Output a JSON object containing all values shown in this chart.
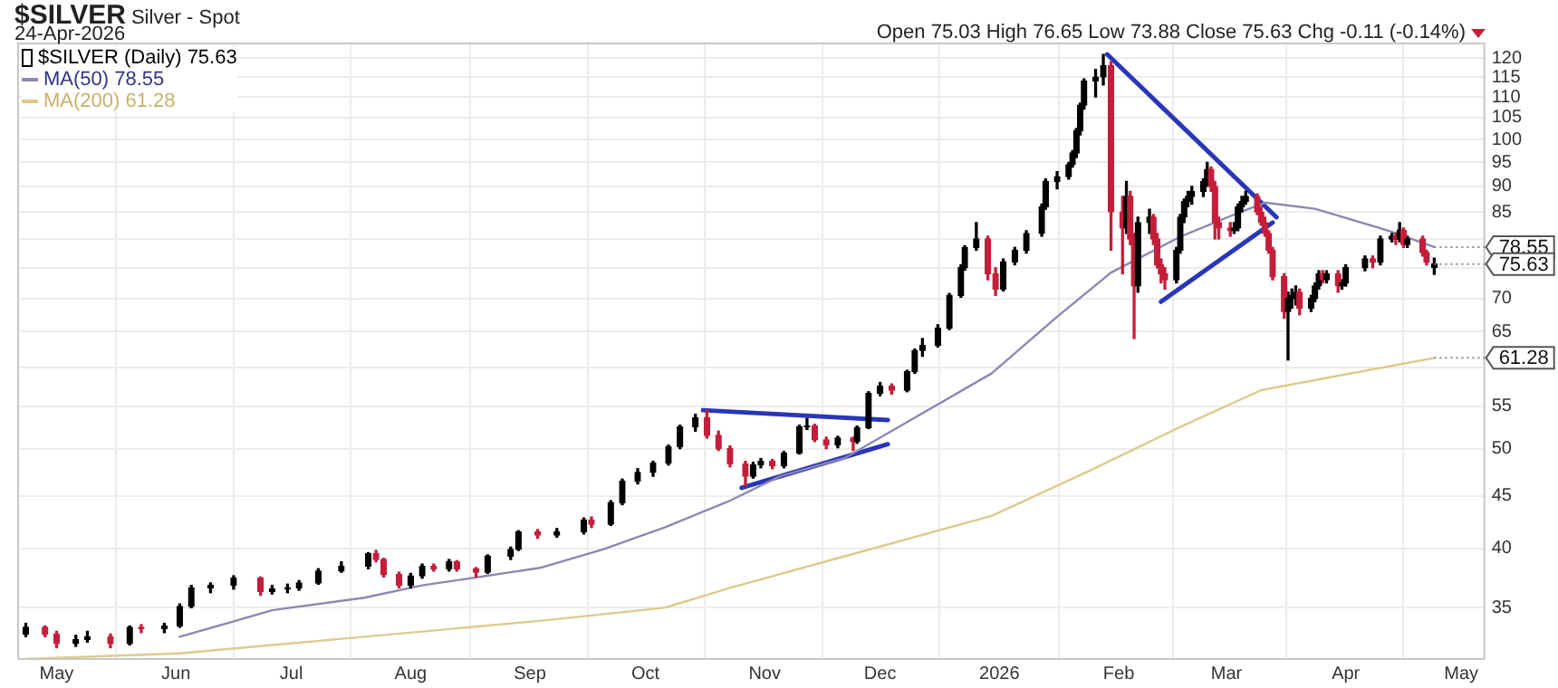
{
  "chart_data": {
    "type": "candlestick",
    "title": "$SILVER",
    "subtitle": "Silver - Spot",
    "annotations": [
      "24-Apr-2026",
      "Open 75.03 High 76.65 Low 73.88 Close 75.63 Chg -0.11 (-0.14%)",
      {
        "text": "78.55",
        "x": "2026-04-24",
        "y": 78.55
      },
      {
        "text": "75.63",
        "x": "2026-04-24",
        "y": 75.63
      },
      {
        "text": "61.28",
        "x": "2026-04-24",
        "y": 61.28
      }
    ],
    "xlim": [
      "2025-04-21",
      "2026-05-07"
    ],
    "xticks": [
      {
        "value": "2025-05-01",
        "label": "May"
      },
      {
        "value": "2025-06-01",
        "label": "Jun"
      },
      {
        "value": "2025-07-01",
        "label": "Jul"
      },
      {
        "value": "2025-08-01",
        "label": "Aug"
      },
      {
        "value": "2025-09-01",
        "label": "Sep"
      },
      {
        "value": "2025-10-01",
        "label": "Oct"
      },
      {
        "value": "2025-11-01",
        "label": "Nov"
      },
      {
        "value": "2025-12-01",
        "label": "Dec"
      },
      {
        "value": "2026-01-01",
        "label": "2026"
      },
      {
        "value": "2026-02-01",
        "label": "Feb"
      },
      {
        "value": "2026-03-01",
        "label": "Mar"
      },
      {
        "value": "2026-04-01",
        "label": "Apr"
      },
      {
        "value": "2026-05-01",
        "label": "May"
      }
    ],
    "ylim": [
      31.2,
      124
    ],
    "yticks": [
      35,
      40,
      45,
      50,
      55,
      {
        "value": 60,
        "label": null
      },
      65,
      70,
      {
        "value": 75,
        "label": null
      },
      {
        "value": 80,
        "label": null
      },
      85,
      90,
      95,
      100,
      105,
      110,
      115,
      120
    ],
    "log": "y",
    "grid": true,
    "legend": "top left",
    "series": [
      {
        "name": "$SILVER (Daily) 75.63",
        "x": [
          "2025-04-23",
          "2025-04-28",
          "2025-05-01",
          "2025-05-06",
          "2025-05-09",
          "2025-05-15",
          "2025-05-20",
          "2025-05-23",
          "2025-05-29",
          "2025-06-02",
          "2025-06-05",
          "2025-06-10",
          "2025-06-16",
          "2025-06-23",
          "2025-06-26",
          "2025-06-30",
          "2025-07-03",
          "2025-07-08",
          "2025-07-14",
          "2025-07-21",
          "2025-07-23",
          "2025-07-25",
          "2025-07-29",
          "2025-08-01",
          "2025-08-04",
          "2025-08-07",
          "2025-08-11",
          "2025-08-13",
          "2025-08-18",
          "2025-08-21",
          "2025-08-27",
          "2025-08-29",
          "2025-09-03",
          "2025-09-08",
          "2025-09-15",
          "2025-09-17",
          "2025-09-22",
          "2025-09-25",
          "2025-09-29",
          "2025-10-03",
          "2025-10-07",
          "2025-10-10",
          "2025-10-14",
          "2025-10-17",
          "2025-10-20",
          "2025-10-23",
          "2025-10-27",
          "2025-10-29",
          "2025-10-31",
          "2025-11-03",
          "2025-11-06",
          "2025-11-10",
          "2025-11-12",
          "2025-11-14",
          "2025-11-17",
          "2025-11-20",
          "2025-11-24",
          "2025-11-25",
          "2025-11-28",
          "2025-12-01",
          "2025-12-04",
          "2025-12-08",
          "2025-12-10",
          "2025-12-12",
          "2025-12-16",
          "2025-12-19",
          "2025-12-22",
          "2025-12-23",
          "2025-12-26",
          "2025-12-29",
          "2025-12-31",
          "2026-01-02",
          "2026-01-05",
          "2026-01-08",
          "2026-01-12",
          "2026-01-13",
          "2026-01-16",
          "2026-01-19",
          "2026-01-20",
          "2026-01-21",
          "2026-01-22",
          "2026-01-23",
          "2026-01-26",
          "2026-01-28",
          "2026-01-30",
          "2026-02-02",
          "2026-02-03",
          "2026-02-04",
          "2026-02-05",
          "2026-02-06",
          "2026-02-09",
          "2026-02-10",
          "2026-02-11",
          "2026-02-12",
          "2026-02-13",
          "2026-02-16",
          "2026-02-17",
          "2026-02-18",
          "2026-02-19",
          "2026-02-20",
          "2026-02-23",
          "2026-02-24",
          "2026-02-25",
          "2026-02-26",
          "2026-02-27",
          "2026-03-02",
          "2026-03-03",
          "2026-03-04",
          "2026-03-05",
          "2026-03-06",
          "2026-03-09",
          "2026-03-10",
          "2026-03-11",
          "2026-03-12",
          "2026-03-13",
          "2026-03-16",
          "2026-03-17",
          "2026-03-18",
          "2026-03-19",
          "2026-03-20",
          "2026-03-23",
          "2026-03-24",
          "2026-03-25",
          "2026-03-26",
          "2026-03-27",
          "2026-03-30",
          "2026-03-31",
          "2026-04-01",
          "2026-04-06",
          "2026-04-08",
          "2026-04-10",
          "2026-04-13",
          "2026-04-14",
          "2026-04-15",
          "2026-04-16",
          "2026-04-17",
          "2026-04-21",
          "2026-04-22",
          "2026-04-24"
        ],
        "ohlc": [
          [
            33.0,
            33.8,
            32.8,
            33.5
          ],
          [
            33.5,
            33.6,
            32.8,
            33.0
          ],
          [
            33.0,
            33.2,
            32.0,
            32.3
          ],
          [
            32.3,
            32.9,
            32.1,
            32.6
          ],
          [
            32.6,
            33.2,
            32.4,
            32.8
          ],
          [
            32.8,
            33.0,
            32.0,
            32.3
          ],
          [
            32.3,
            33.6,
            32.2,
            33.5
          ],
          [
            33.5,
            33.7,
            33.1,
            33.4
          ],
          [
            33.4,
            33.8,
            33.1,
            33.6
          ],
          [
            33.6,
            35.3,
            33.5,
            35.1
          ],
          [
            35.1,
            36.8,
            35.0,
            36.6
          ],
          [
            36.6,
            37.0,
            36.2,
            36.8
          ],
          [
            36.8,
            37.6,
            36.5,
            37.4
          ],
          [
            37.4,
            37.5,
            36.0,
            36.3
          ],
          [
            36.3,
            36.8,
            36.1,
            36.5
          ],
          [
            36.5,
            36.9,
            36.2,
            36.6
          ],
          [
            36.6,
            37.2,
            36.4,
            37.0
          ],
          [
            37.0,
            38.2,
            36.9,
            38.0
          ],
          [
            38.0,
            38.8,
            37.9,
            38.4
          ],
          [
            38.4,
            39.6,
            38.2,
            39.5
          ],
          [
            39.5,
            39.8,
            38.8,
            39.0
          ],
          [
            39.0,
            39.1,
            37.5,
            37.7
          ],
          [
            37.7,
            37.9,
            36.6,
            36.8
          ],
          [
            36.8,
            37.8,
            36.6,
            37.6
          ],
          [
            37.6,
            38.6,
            37.4,
            38.4
          ],
          [
            38.4,
            38.6,
            38.0,
            38.2
          ],
          [
            38.2,
            39.0,
            38.0,
            38.8
          ],
          [
            38.8,
            38.9,
            38.0,
            38.2
          ],
          [
            38.2,
            38.3,
            37.5,
            37.9
          ],
          [
            37.9,
            39.4,
            37.8,
            39.3
          ],
          [
            39.3,
            40.1,
            39.0,
            39.9
          ],
          [
            39.9,
            41.6,
            39.8,
            41.5
          ],
          [
            41.5,
            41.7,
            40.9,
            41.2
          ],
          [
            41.2,
            41.8,
            41.0,
            41.5
          ],
          [
            41.5,
            42.8,
            41.3,
            42.6
          ],
          [
            42.6,
            42.9,
            41.9,
            42.2
          ],
          [
            42.2,
            44.5,
            42.1,
            44.3
          ],
          [
            44.3,
            46.7,
            44.1,
            46.5
          ],
          [
            46.5,
            47.8,
            46.2,
            47.4
          ],
          [
            47.4,
            48.6,
            47.0,
            48.4
          ],
          [
            48.4,
            50.4,
            48.2,
            50.2
          ],
          [
            50.2,
            52.7,
            50.0,
            52.5
          ],
          [
            52.5,
            54.0,
            52.0,
            53.6
          ],
          [
            53.6,
            54.5,
            51.2,
            51.5
          ],
          [
            51.5,
            52.0,
            49.8,
            50.0
          ],
          [
            50.0,
            50.3,
            48.0,
            48.3
          ],
          [
            48.3,
            48.6,
            46.0,
            47.0
          ],
          [
            47.0,
            48.5,
            46.8,
            48.2
          ],
          [
            48.2,
            48.9,
            47.9,
            48.6
          ],
          [
            48.6,
            48.8,
            47.8,
            48.1
          ],
          [
            48.1,
            49.7,
            47.9,
            49.5
          ],
          [
            49.5,
            52.7,
            49.4,
            52.5
          ],
          [
            52.5,
            53.5,
            52.2,
            52.6
          ],
          [
            52.6,
            52.8,
            50.8,
            51.0
          ],
          [
            51.0,
            51.3,
            50.0,
            50.4
          ],
          [
            50.4,
            51.4,
            50.1,
            51.2
          ],
          [
            51.2,
            51.3,
            49.8,
            50.8
          ],
          [
            50.8,
            52.6,
            50.6,
            52.4
          ],
          [
            52.4,
            56.8,
            52.3,
            56.6
          ],
          [
            56.6,
            58.0,
            56.3,
            57.5
          ],
          [
            57.5,
            57.8,
            56.5,
            57.0
          ],
          [
            57.0,
            59.6,
            56.8,
            59.4
          ],
          [
            59.4,
            62.5,
            59.2,
            62.3
          ],
          [
            62.3,
            64.0,
            61.5,
            63.0
          ],
          [
            63.0,
            66.0,
            62.8,
            65.5
          ],
          [
            65.5,
            70.8,
            65.3,
            70.5
          ],
          [
            70.5,
            75.5,
            70.2,
            75.0
          ],
          [
            75.0,
            78.8,
            74.6,
            78.5
          ],
          [
            78.5,
            83.0,
            78.0,
            80.0
          ],
          [
            80.0,
            80.5,
            73.0,
            74.0
          ],
          [
            74.0,
            75.0,
            70.5,
            71.5
          ],
          [
            71.5,
            76.5,
            71.2,
            76.0
          ],
          [
            76.0,
            78.5,
            75.5,
            78.0
          ],
          [
            78.0,
            81.5,
            77.5,
            81.0
          ],
          [
            81.0,
            86.5,
            80.5,
            86.0
          ],
          [
            86.0,
            91.5,
            85.5,
            91.0
          ],
          [
            91.0,
            93.0,
            89.5,
            92.0
          ],
          [
            92.0,
            95.0,
            91.5,
            94.5
          ],
          [
            94.5,
            97.5,
            94.0,
            97.0
          ],
          [
            97,
            102.5,
            96,
            102
          ],
          [
            102,
            108.5,
            101,
            108
          ],
          [
            108,
            114.5,
            107,
            114
          ],
          [
            114,
            117,
            110,
            115
          ],
          [
            115,
            121,
            113,
            118
          ],
          [
            118,
            119,
            78,
            85
          ],
          [
            85,
            88,
            74,
            82
          ],
          [
            82,
            91,
            81,
            88
          ],
          [
            88,
            89,
            79,
            80
          ],
          [
            80,
            81,
            64,
            72
          ],
          [
            72,
            84,
            71,
            83
          ],
          [
            83,
            85.5,
            81,
            84
          ],
          [
            84,
            84.5,
            79,
            80
          ],
          [
            80,
            81,
            75,
            75.5
          ],
          [
            75.5,
            76.5,
            72.5,
            74
          ],
          [
            74,
            75,
            71.5,
            73
          ],
          [
            73,
            78.5,
            72.5,
            78
          ],
          [
            78,
            84.5,
            77.5,
            84
          ],
          [
            84,
            87.5,
            83,
            87
          ],
          [
            87,
            89,
            86,
            88
          ],
          [
            88,
            90,
            86.5,
            89
          ],
          [
            89,
            91.5,
            88,
            91
          ],
          [
            91,
            95,
            90,
            93.5
          ],
          [
            93.5,
            94,
            89,
            90
          ],
          [
            90,
            91,
            80,
            83
          ],
          [
            83,
            84,
            80,
            82
          ],
          [
            82,
            83,
            80.5,
            81.5
          ],
          [
            81.5,
            83,
            81,
            82
          ],
          [
            82,
            86.5,
            81.5,
            86
          ],
          [
            86,
            88,
            85,
            87
          ],
          [
            87,
            89,
            86.5,
            88
          ],
          [
            88,
            88.5,
            84.5,
            85
          ],
          [
            85,
            86,
            82.5,
            83
          ],
          [
            83,
            84,
            80.5,
            81
          ],
          [
            81,
            81.5,
            77.5,
            78
          ],
          [
            78,
            78.5,
            73,
            73.5
          ],
          [
            73.5,
            74,
            67,
            68
          ],
          [
            68,
            71,
            61,
            70
          ],
          [
            70,
            71.5,
            68.5,
            70.5
          ],
          [
            70.5,
            72,
            69,
            71
          ],
          [
            71,
            71.5,
            67.5,
            68.5
          ],
          [
            68.5,
            70.5,
            68,
            70
          ],
          [
            70,
            72.5,
            69.5,
            72
          ],
          [
            72,
            74.5,
            71.5,
            74
          ],
          [
            74,
            74.5,
            72.5,
            73
          ],
          [
            73,
            74.5,
            72.5,
            74
          ],
          [
            74,
            74.5,
            71,
            72
          ],
          [
            72,
            73,
            71.5,
            72.5
          ],
          [
            72.5,
            75.5,
            72,
            75
          ],
          [
            75,
            77,
            74.5,
            76.5
          ],
          [
            76.5,
            77,
            75,
            76
          ],
          [
            76,
            80.5,
            75.5,
            80
          ],
          [
            80,
            81,
            79.5,
            80.5
          ],
          [
            80.5,
            81,
            79,
            80
          ],
          [
            80,
            83,
            79.5,
            81.6
          ],
          [
            81.6,
            82,
            78.5,
            79
          ],
          [
            79,
            80.5,
            78.5,
            80
          ],
          [
            80,
            80.5,
            77,
            77.6
          ],
          [
            77.6,
            78,
            75.5,
            76
          ],
          [
            75.03,
            76.65,
            73.88,
            75.63
          ]
        ],
        "colors": [
          "#000000",
          "#c41e3a",
          "#c41e3a",
          "#000000",
          "#000000",
          "#c41e3a",
          "#000000",
          "#c41e3a",
          "#000000",
          "#000000",
          "#000000",
          "#000000",
          "#000000",
          "#c41e3a",
          "#000000",
          "#000000",
          "#000000",
          "#000000",
          "#000000",
          "#000000",
          "#c41e3a",
          "#c41e3a",
          "#c41e3a",
          "#000000",
          "#000000",
          "#c41e3a",
          "#000000",
          "#c41e3a",
          "#c41e3a",
          "#000000",
          "#000000",
          "#000000",
          "#c41e3a",
          "#000000",
          "#000000",
          "#c41e3a",
          "#000000",
          "#000000",
          "#000000",
          "#000000",
          "#000000",
          "#000000",
          "#000000",
          "#c41e3a",
          "#c41e3a",
          "#c41e3a",
          "#c41e3a",
          "#000000",
          "#000000",
          "#c41e3a",
          "#000000",
          "#000000",
          "#000000",
          "#c41e3a",
          "#c41e3a",
          "#000000",
          "#c41e3a",
          "#000000",
          "#000000",
          "#000000",
          "#c41e3a",
          "#000000",
          "#000000",
          "#000000",
          "#000000",
          "#000000",
          "#000000",
          "#000000",
          "#000000",
          "#c41e3a",
          "#c41e3a",
          "#000000",
          "#000000",
          "#000000",
          "#000000",
          "#000000",
          "#000000",
          "#000000",
          "#000000",
          "#000000",
          "#000000",
          "#000000",
          "#000000",
          "#000000",
          "#c41e3a",
          "#c41e3a",
          "#000000",
          "#c41e3a",
          "#c41e3a",
          "#000000",
          "#000000",
          "#c41e3a",
          "#c41e3a",
          "#c41e3a",
          "#c41e3a",
          "#000000",
          "#000000",
          "#000000",
          "#000000",
          "#000000",
          "#000000",
          "#000000",
          "#c41e3a",
          "#c41e3a",
          "#c41e3a",
          "#c41e3a",
          "#000000",
          "#000000",
          "#000000",
          "#000000",
          "#c41e3a",
          "#c41e3a",
          "#c41e3a",
          "#c41e3a",
          "#c41e3a",
          "#c41e3a",
          "#000000",
          "#000000",
          "#000000",
          "#c41e3a",
          "#000000",
          "#000000",
          "#000000",
          "#c41e3a",
          "#000000",
          "#c41e3a",
          "#000000",
          "#000000",
          "#000000",
          "#c41e3a",
          "#000000",
          "#000000",
          "#c41e3a",
          "#000000",
          "#c41e3a",
          "#000000",
          "#c41e3a",
          "#c41e3a",
          "#000000"
        ]
      },
      {
        "type": "line",
        "name": "MA(50) 78.55",
        "color": "#8a88b4",
        "x": [
          "2025-06-02",
          "2025-06-26",
          "2025-07-20",
          "2025-08-04",
          "2025-08-27",
          "2025-09-04",
          "2025-09-20",
          "2025-10-06",
          "2025-10-23",
          "2025-11-05",
          "2025-11-22",
          "2025-12-07",
          "2025-12-30",
          "2026-01-16",
          "2026-01-30",
          "2026-02-17",
          "2026-03-03",
          "2026-03-11",
          "2026-03-24",
          "2026-04-13",
          "2026-04-24"
        ],
        "values": [
          32.8,
          34.8,
          35.8,
          36.8,
          37.9,
          38.3,
          39.9,
          41.9,
          44.5,
          47.0,
          49.0,
          52.8,
          59.2,
          67.2,
          74.2,
          80.4,
          84.5,
          86.8,
          85.6,
          81.3,
          78.55
        ]
      },
      {
        "type": "line",
        "name": "MA(200) 61.28",
        "color": "#ddca8c",
        "x": [
          "2025-04-23",
          "2025-06-02",
          "2025-07-20",
          "2025-09-04",
          "2025-10-06",
          "2025-10-23",
          "2025-11-22",
          "2025-12-30",
          "2026-01-24",
          "2026-02-17",
          "2026-03-10",
          "2026-04-24"
        ],
        "values": [
          31.2,
          31.6,
          32.8,
          34.0,
          35.0,
          36.6,
          39.3,
          43.0,
          47.5,
          52.5,
          57.0,
          61.28
        ]
      },
      {
        "type": "line",
        "color": "#2a36b8",
        "x": [
          "2025-10-16",
          "2025-12-03"
        ],
        "values": [
          54.5,
          53.3
        ]
      },
      {
        "type": "line",
        "color": "#2a36b8",
        "x": [
          "2025-10-26",
          "2025-12-03"
        ],
        "values": [
          45.8,
          50.5
        ]
      },
      {
        "type": "line",
        "color": "#2a36b8",
        "x": [
          "2026-01-29",
          "2026-03-14"
        ],
        "values": [
          121,
          84
        ]
      },
      {
        "type": "line",
        "color": "#2a36b8",
        "x": [
          "2026-02-12",
          "2026-03-13"
        ],
        "values": [
          69.5,
          83
        ]
      }
    ]
  }
}
